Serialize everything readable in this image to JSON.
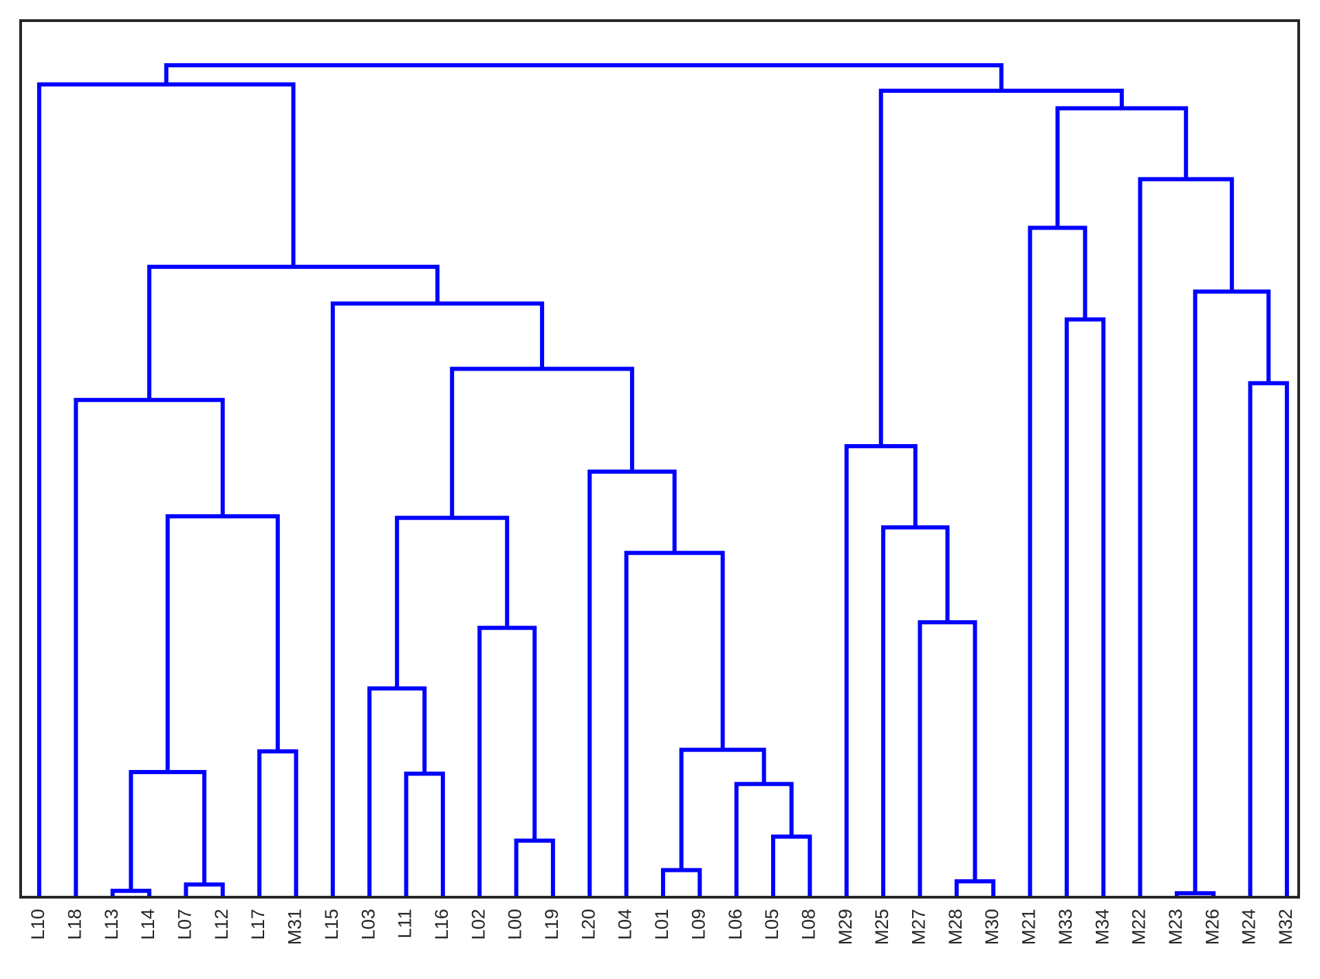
{
  "chart_data": {
    "type": "dendrogram",
    "orientation": "top",
    "link_color": "#0000ff",
    "leaves": [
      "L10",
      "L18",
      "L13",
      "L14",
      "L07",
      "L12",
      "L17",
      "M31",
      "L15",
      "L03",
      "L11",
      "L16",
      "L02",
      "L00",
      "L19",
      "L20",
      "L04",
      "L01",
      "L09",
      "L06",
      "L05",
      "L08",
      "M29",
      "M25",
      "M27",
      "M28",
      "M30",
      "M21",
      "M33",
      "M34",
      "M22",
      "M23",
      "M26",
      "M24",
      "M32"
    ],
    "merges": [
      {
        "children": [
          "L13",
          "L14"
        ],
        "height": 0.008
      },
      {
        "children": [
          "M23",
          "M26"
        ],
        "height": 0.005
      },
      {
        "children": [
          "L07",
          "L12"
        ],
        "height": 0.016
      },
      {
        "children": [
          "M28",
          "M30"
        ],
        "height": 0.02
      },
      {
        "children": [
          "L01",
          "L09"
        ],
        "height": 0.034
      },
      {
        "children": [
          "L05",
          "L08"
        ],
        "height": 0.076
      },
      {
        "children": [
          "L00",
          "L19"
        ],
        "height": 0.071
      },
      {
        "children": [
          "L06",
          5
        ],
        "height": 0.142
      },
      {
        "children": [
          4,
          7
        ],
        "height": 0.185
      },
      {
        "children": [
          "L17",
          "M31"
        ],
        "height": 0.183
      },
      {
        "children": [
          0,
          2
        ],
        "height": 0.157
      },
      {
        "children": [
          "L11",
          "L16"
        ],
        "height": 0.155
      },
      {
        "children": [
          "L03",
          11
        ],
        "height": 0.262
      },
      {
        "children": [
          "L02",
          6
        ],
        "height": 0.338
      },
      {
        "children": [
          12,
          13
        ],
        "height": 0.476
      },
      {
        "children": [
          "M27",
          3
        ],
        "height": 0.345
      },
      {
        "children": [
          "M25",
          15
        ],
        "height": 0.464
      },
      {
        "children": [
          "M29",
          16
        ],
        "height": 0.566
      },
      {
        "children": [
          "L04",
          8
        ],
        "height": 0.432
      },
      {
        "children": [
          "L20",
          18
        ],
        "height": 0.534
      },
      {
        "children": [
          14,
          19
        ],
        "height": 0.663
      },
      {
        "children": [
          "M24",
          "M32"
        ],
        "height": 0.645
      },
      {
        "children": [
          "M33",
          "M34"
        ],
        "height": 0.725
      },
      {
        "children": [
          "M21",
          22
        ],
        "height": 0.84
      },
      {
        "children": [
          1,
          21
        ],
        "height": 0.76
      },
      {
        "children": [
          "M22",
          24
        ],
        "height": 0.901
      },
      {
        "children": [
          23,
          25
        ],
        "height": 0.99
      },
      {
        "children": [
          10,
          9
        ],
        "height": 0.478
      },
      {
        "children": [
          "L18",
          27
        ],
        "height": 0.624
      },
      {
        "children": [
          "L15",
          20
        ],
        "height": 0.745
      },
      {
        "children": [
          28,
          29
        ],
        "height": 0.791
      },
      {
        "children": [
          "L10",
          30
        ],
        "height": 1.02
      },
      {
        "children": [
          17,
          26
        ],
        "height": 1.012
      },
      {
        "children": [
          31,
          32
        ],
        "height": 1.044
      }
    ],
    "ylim": [
      0,
      1.1
    ],
    "grid": false,
    "title": "",
    "xlabel": "",
    "ylabel": ""
  }
}
